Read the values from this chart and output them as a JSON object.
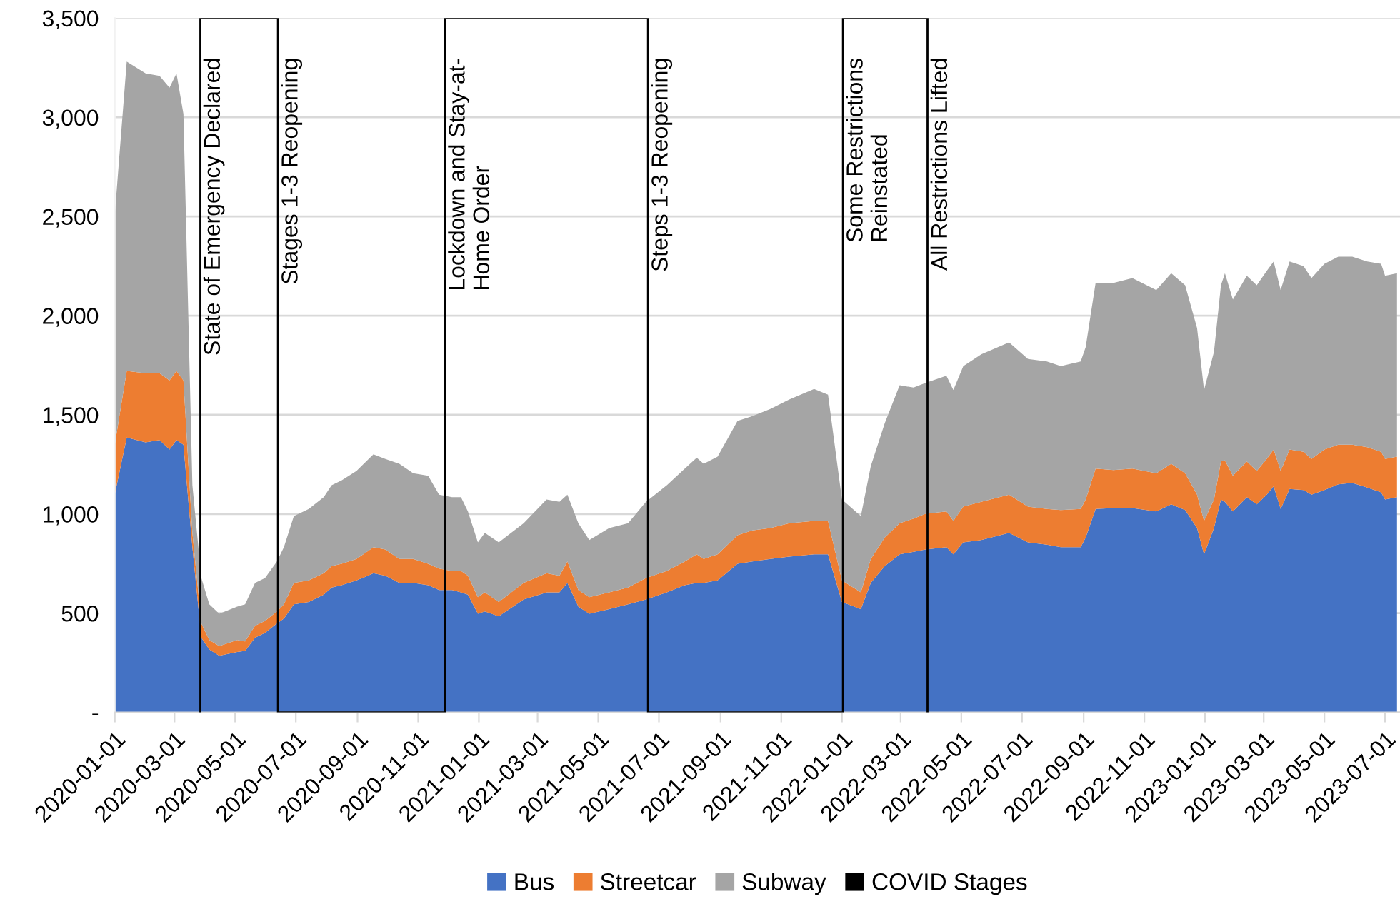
{
  "chart_data": {
    "type": "area",
    "stacked": true,
    "x": [
      "2020-01-01",
      "2020-01-13",
      "2020-02-01",
      "2020-02-15",
      "2020-02-25",
      "2020-03-03",
      "2020-03-10",
      "2020-03-19",
      "2020-03-28",
      "2020-04-05",
      "2020-04-15",
      "2020-05-03",
      "2020-05-11",
      "2020-05-21",
      "2020-05-31",
      "2020-06-12",
      "2020-06-19",
      "2020-06-29",
      "2020-07-14",
      "2020-07-29",
      "2020-08-06",
      "2020-08-16",
      "2020-08-31",
      "2020-09-17",
      "2020-09-29",
      "2020-10-13",
      "2020-10-27",
      "2020-11-11",
      "2020-11-22",
      "2020-12-05",
      "2020-12-14",
      "2020-12-21",
      "2020-12-31",
      "2021-01-07",
      "2021-01-21",
      "2021-02-15",
      "2021-03-10",
      "2021-03-23",
      "2021-03-31",
      "2021-04-11",
      "2021-04-22",
      "2021-05-12",
      "2021-05-31",
      "2021-06-18",
      "2021-07-09",
      "2021-07-27",
      "2021-08-08",
      "2021-08-15",
      "2021-08-29",
      "2021-09-18",
      "2021-10-03",
      "2021-10-21",
      "2021-11-09",
      "2021-12-04",
      "2021-12-18",
      "2022-01-01",
      "2022-01-20",
      "2022-01-30",
      "2022-02-13",
      "2022-02-28",
      "2022-03-14",
      "2022-03-26",
      "2022-04-16",
      "2022-04-23",
      "2022-05-03",
      "2022-05-21",
      "2022-06-18",
      "2022-07-07",
      "2022-07-26",
      "2022-08-09",
      "2022-08-29",
      "2022-09-03",
      "2022-09-13",
      "2022-10-01",
      "2022-10-20",
      "2022-11-13",
      "2022-11-28",
      "2022-12-12",
      "2022-12-24",
      "2022-12-31",
      "2023-01-10",
      "2023-01-17",
      "2023-01-21",
      "2023-01-29",
      "2023-02-12",
      "2023-02-22",
      "2023-03-04",
      "2023-03-11",
      "2023-03-18",
      "2023-03-27",
      "2023-04-10",
      "2023-04-18",
      "2023-05-01",
      "2023-05-15",
      "2023-05-29",
      "2023-06-13",
      "2023-06-27",
      "2023-07-01",
      "2023-07-13"
    ],
    "series": [
      {
        "name": "Bus",
        "color": "#4472c4",
        "values": [
          1100,
          1385,
          1361,
          1373,
          1325,
          1373,
          1349,
          833,
          377,
          317,
          286,
          305,
          310,
          377,
          401,
          449,
          473,
          545,
          557,
          593,
          629,
          641,
          665,
          701,
          689,
          653,
          653,
          641,
          617,
          617,
          605,
          593,
          497,
          509,
          485,
          569,
          605,
          605,
          653,
          533,
          497,
          521,
          545,
          569,
          605,
          641,
          653,
          653,
          665,
          749,
          761,
          773,
          785,
          797,
          797,
          557,
          521,
          653,
          737,
          797,
          809,
          821,
          833,
          797,
          857,
          869,
          905,
          857,
          845,
          833,
          833,
          881,
          1025,
          1030,
          1030,
          1013,
          1049,
          1020,
          929,
          797,
          929,
          1073,
          1061,
          1013,
          1085,
          1049,
          1097,
          1140,
          1025,
          1126,
          1121,
          1097,
          1121,
          1150,
          1157,
          1133,
          1109,
          1073,
          1085
        ]
      },
      {
        "name": "Streetcar",
        "color": "#ed7d31",
        "values": [
          250,
          336,
          348,
          336,
          348,
          348,
          324,
          72,
          72,
          48,
          48,
          60,
          48,
          60,
          60,
          60,
          72,
          108,
          108,
          108,
          108,
          108,
          108,
          132,
          132,
          120,
          120,
          108,
          108,
          96,
          108,
          96,
          84,
          96,
          72,
          84,
          96,
          84,
          108,
          84,
          84,
          84,
          84,
          108,
          108,
          120,
          144,
          120,
          132,
          144,
          156,
          156,
          168,
          168,
          168,
          108,
          84,
          120,
          144,
          156,
          168,
          180,
          180,
          168,
          180,
          192,
          192,
          180,
          180,
          187,
          192,
          192,
          204,
          192,
          199,
          192,
          204,
          185,
          168,
          168,
          144,
          192,
          209,
          180,
          180,
          168,
          180,
          185,
          192,
          199,
          192,
          180,
          204,
          199,
          192,
          204,
          204,
          204,
          204
        ]
      },
      {
        "name": "Subway",
        "color": "#a5a5a5",
        "values": [
          1160,
          1560,
          1512,
          1500,
          1476,
          1500,
          1344,
          240,
          228,
          180,
          163,
          168,
          187,
          216,
          216,
          252,
          288,
          336,
          360,
          384,
          408,
          420,
          444,
          468,
          456,
          480,
          432,
          444,
          372,
          372,
          372,
          324,
          276,
          300,
          300,
          300,
          372,
          372,
          336,
          336,
          288,
          324,
          324,
          384,
          432,
          468,
          487,
          480,
          492,
          576,
          576,
          600,
          624,
          665,
          636,
          408,
          384,
          468,
          576,
          696,
          660,
          660,
          684,
          660,
          708,
          744,
          768,
          744,
          744,
          725,
          744,
          768,
          936,
          943,
          960,
          924,
          960,
          948,
          840,
          660,
          744,
          888,
          943,
          888,
          936,
          936,
          948,
          948,
          912,
          948,
          936,
          912,
          936,
          948,
          948,
          936,
          948,
          924,
          924
        ]
      },
      {
        "name": "COVID Stages",
        "type": "line",
        "color": "#000000",
        "x": [
          "2020-03-27",
          "2020-03-27",
          "2020-06-13",
          "2020-06-13",
          "2020-11-28",
          "2020-11-28",
          "2021-06-20",
          "2021-06-20",
          "2022-01-02",
          "2022-01-02",
          "2022-03-28",
          "2022-03-28"
        ],
        "values": [
          0,
          3500,
          3500,
          0,
          0,
          3500,
          3500,
          0,
          0,
          3500,
          3500,
          0
        ]
      }
    ],
    "annotations": [
      {
        "text": "State of Emergency Declared",
        "x": "2020-03-27",
        "y": 3300
      },
      {
        "text": "Stages 1-3 Reopening",
        "x": "2020-06-13",
        "y": 3300
      },
      {
        "text": "Lockdown and Stay-at-\nHome Order",
        "x": "2020-11-28",
        "y": 3300
      },
      {
        "text": "Steps 1-3 Reopening",
        "x": "2021-06-20",
        "y": 3300
      },
      {
        "text": "Some Restrictions\nReinstated",
        "x": "2022-01-02",
        "y": 3300
      },
      {
        "text": "All Restrictions Lifted",
        "x": "2022-03-28",
        "y": 3300
      }
    ],
    "xlim": [
      "2020-01-01",
      "2023-07-16"
    ],
    "xticks": [
      "2020-01-01",
      "2020-03-01",
      "2020-05-01",
      "2020-07-01",
      "2020-09-01",
      "2020-11-01",
      "2021-01-01",
      "2021-03-01",
      "2021-05-01",
      "2021-07-01",
      "2021-09-01",
      "2021-11-01",
      "2022-01-01",
      "2022-03-01",
      "2022-05-01",
      "2022-07-01",
      "2022-09-01",
      "2022-11-01",
      "2023-01-01",
      "2023-03-01",
      "2023-05-01",
      "2023-07-01"
    ],
    "ylim": [
      0,
      3500
    ],
    "yticks": [
      {
        "value": 0,
        "label": "-"
      },
      500,
      {
        "value": 1000,
        "label": "1,000"
      },
      {
        "value": 1500,
        "label": "1,500"
      },
      {
        "value": 2000,
        "label": "2,000"
      },
      {
        "value": 2500,
        "label": "2,500"
      },
      {
        "value": 3000,
        "label": "3,000"
      },
      {
        "value": 3500,
        "label": "3,500"
      }
    ],
    "grid": "y",
    "legend": "bottom"
  }
}
